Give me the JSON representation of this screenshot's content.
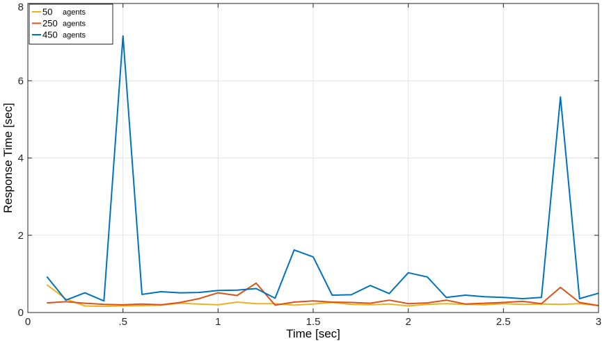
{
  "chart_data": {
    "type": "line",
    "title": "",
    "xlabel": "Time [sec]",
    "ylabel": "Response Time [sec]",
    "xlim": [
      0,
      3
    ],
    "ylim": [
      0,
      8
    ],
    "grid": true,
    "legend_position": "top-left",
    "x_ticks": [
      {
        "value": 0,
        "label": "0"
      },
      {
        "value": 0.5,
        "label": ".5"
      },
      {
        "value": 1,
        "label": "1"
      },
      {
        "value": 1.5,
        "label": "1.5"
      },
      {
        "value": 2,
        "label": "2"
      },
      {
        "value": 2.5,
        "label": "2.5"
      },
      {
        "value": 3,
        "label": "3"
      }
    ],
    "y_ticks": [
      {
        "value": 0,
        "label": "0"
      },
      {
        "value": 2,
        "label": "2"
      },
      {
        "value": 4,
        "label": "4"
      },
      {
        "value": 6,
        "label": "6"
      },
      {
        "value": 8,
        "label": "8"
      }
    ],
    "x": [
      0.1,
      0.2,
      0.3,
      0.4,
      0.5,
      0.6,
      0.7,
      0.8,
      0.9,
      1.0,
      1.1,
      1.2,
      1.3,
      1.4,
      1.5,
      1.6,
      1.7,
      1.8,
      1.9,
      2.0,
      2.1,
      2.2,
      2.3,
      2.4,
      2.5,
      2.6,
      2.7,
      2.8,
      2.9,
      3.0
    ],
    "series": [
      {
        "name": "50",
        "unit_label": "agents",
        "color": "#EDB120",
        "values": [
          0.72,
          0.35,
          0.17,
          0.16,
          0.17,
          0.18,
          0.19,
          0.24,
          0.22,
          0.2,
          0.27,
          0.23,
          0.23,
          0.19,
          0.22,
          0.26,
          0.21,
          0.2,
          0.22,
          0.17,
          0.21,
          0.23,
          0.21,
          0.2,
          0.23,
          0.21,
          0.22,
          0.21,
          0.23,
          0.18
        ]
      },
      {
        "name": "250",
        "unit_label": "agents",
        "color": "#D95319",
        "values": [
          0.25,
          0.28,
          0.24,
          0.21,
          0.2,
          0.22,
          0.2,
          0.26,
          0.36,
          0.51,
          0.44,
          0.76,
          0.19,
          0.27,
          0.3,
          0.27,
          0.26,
          0.24,
          0.32,
          0.23,
          0.25,
          0.32,
          0.22,
          0.24,
          0.26,
          0.29,
          0.23,
          0.65,
          0.26,
          0.18
        ]
      },
      {
        "name": "450",
        "unit_label": "agents",
        "color": "#0072BD",
        "values": [
          0.93,
          0.32,
          0.51,
          0.3,
          7.16,
          0.47,
          0.54,
          0.51,
          0.52,
          0.57,
          0.58,
          0.62,
          0.37,
          1.62,
          1.44,
          0.45,
          0.46,
          0.7,
          0.49,
          1.03,
          0.92,
          0.39,
          0.45,
          0.41,
          0.39,
          0.36,
          0.39,
          5.58,
          0.36,
          0.5
        ]
      }
    ]
  }
}
